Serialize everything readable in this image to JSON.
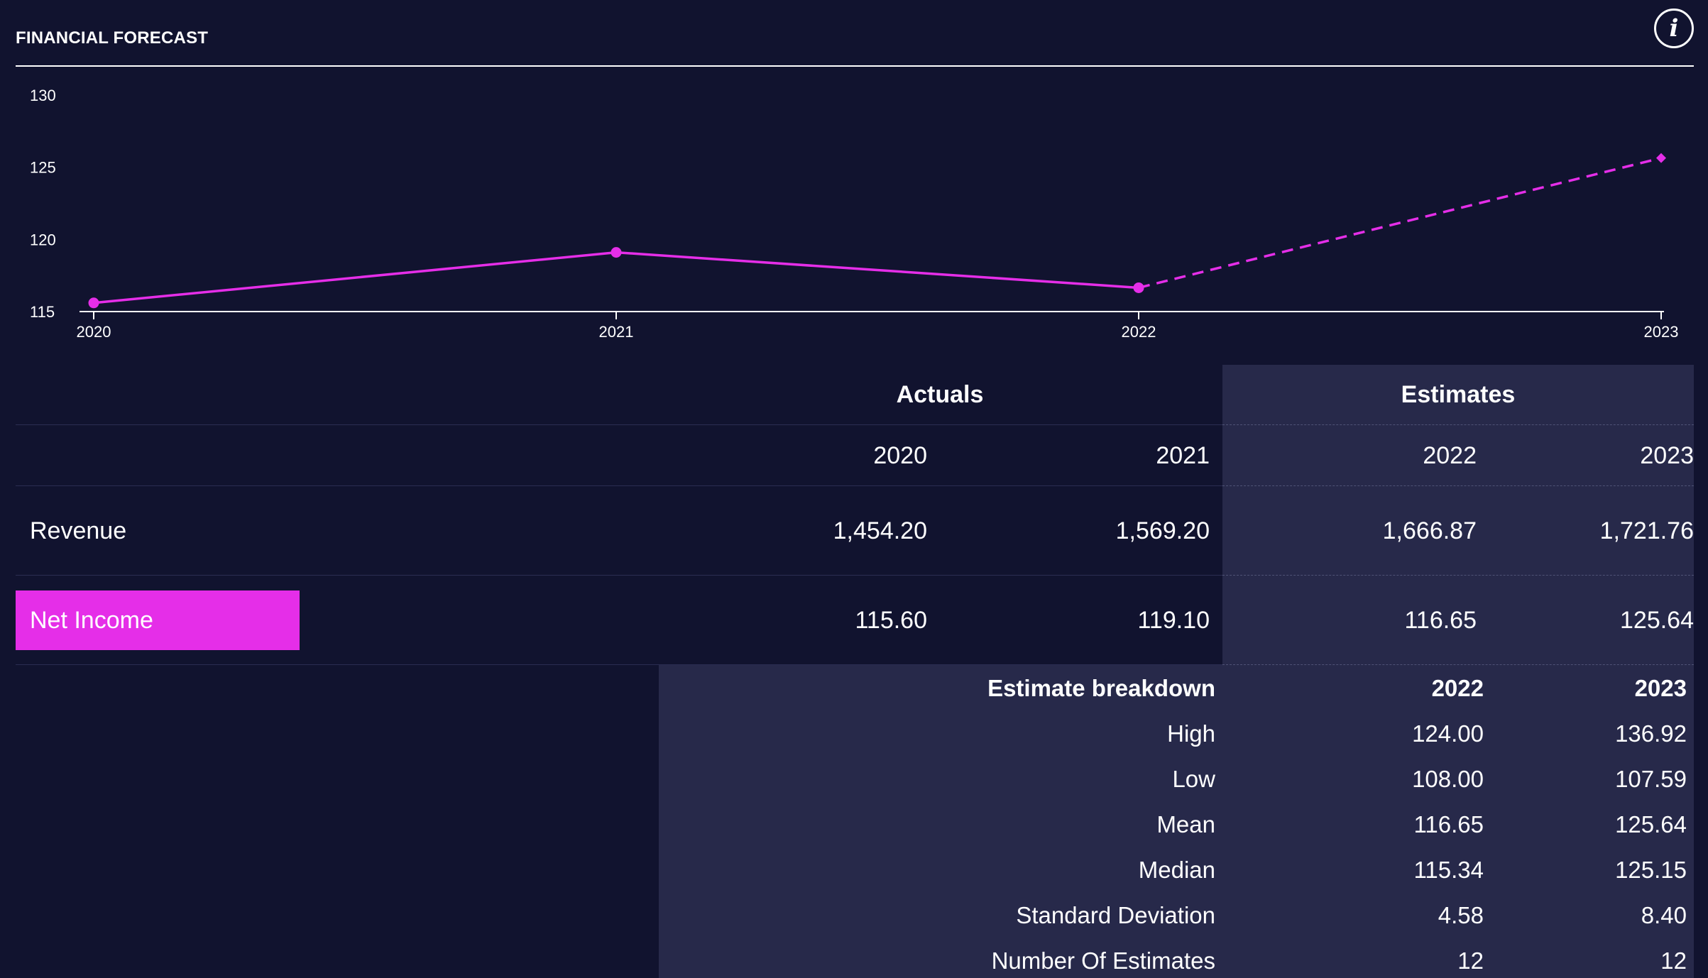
{
  "header": {
    "title": "FINANCIAL FORECAST",
    "info_label": "i"
  },
  "chart_data": {
    "type": "line",
    "x": [
      "2020",
      "2021",
      "2022",
      "2023"
    ],
    "series": [
      {
        "name": "Net Income",
        "values": [
          115.6,
          119.1,
          116.65,
          125.64
        ],
        "color": "#e52ee8",
        "estimate_from_index": 2
      }
    ],
    "yticks": [
      115,
      120,
      125,
      130
    ],
    "ylim": [
      115,
      130
    ],
    "grid": false
  },
  "table": {
    "group_headers": {
      "actuals": "Actuals",
      "estimates": "Estimates"
    },
    "years": [
      "2020",
      "2021",
      "2022",
      "2023"
    ],
    "rows": [
      {
        "label": "Revenue",
        "values": [
          "1,454.20",
          "1,569.20",
          "1,666.87",
          "1,721.76"
        ]
      },
      {
        "label": "Net Income",
        "values": [
          "115.60",
          "119.10",
          "116.65",
          "125.64"
        ],
        "selected": true
      }
    ]
  },
  "breakdown": {
    "title": "Estimate breakdown",
    "years": [
      "2022",
      "2023"
    ],
    "rows": [
      {
        "label": "High",
        "values": [
          "124.00",
          "136.92"
        ]
      },
      {
        "label": "Low",
        "values": [
          "108.00",
          "107.59"
        ]
      },
      {
        "label": "Mean",
        "values": [
          "116.65",
          "125.64"
        ]
      },
      {
        "label": "Median",
        "values": [
          "115.34",
          "125.15"
        ]
      },
      {
        "label": "Standard Deviation",
        "values": [
          "4.58",
          "8.40"
        ]
      },
      {
        "label": "Number Of Estimates",
        "values": [
          "12",
          "12"
        ]
      }
    ]
  },
  "colors": {
    "background": "#11132f",
    "estimate_panel": "#27294a",
    "accent": "#e52ee8"
  }
}
